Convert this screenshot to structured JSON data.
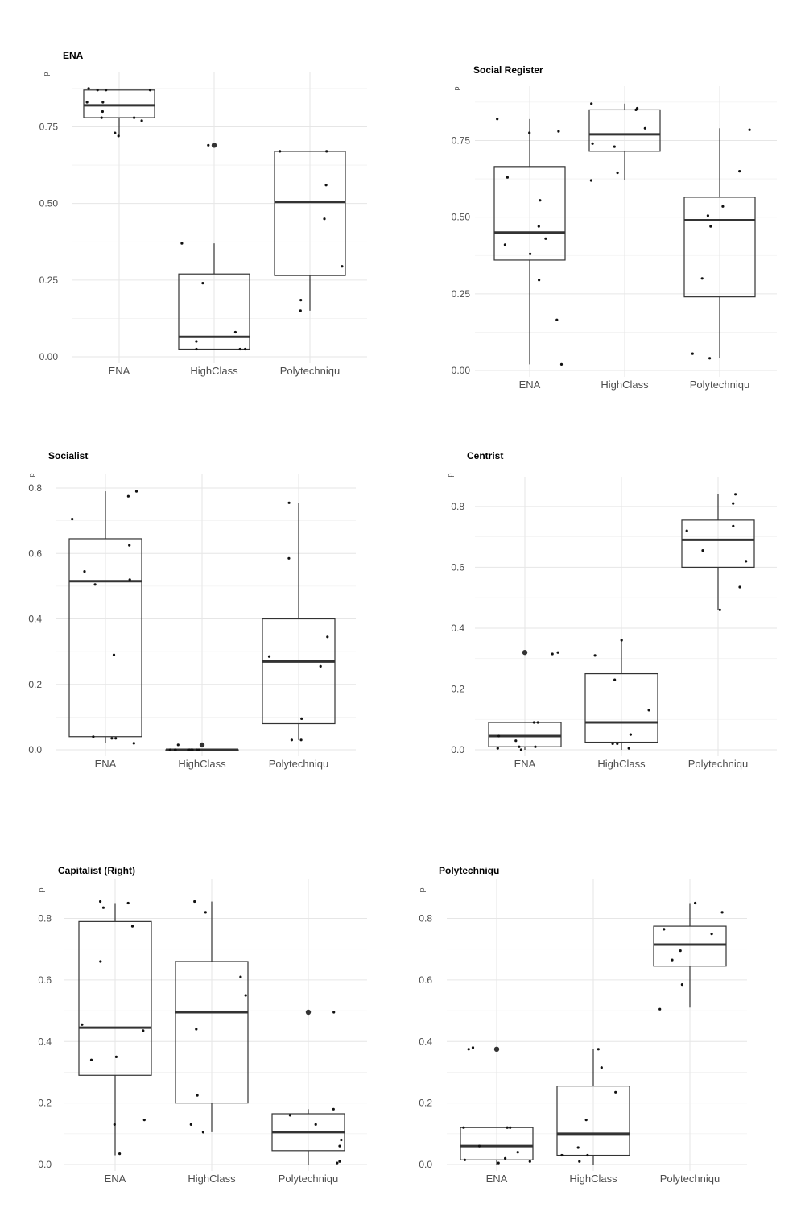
{
  "chart_data": [
    {
      "type": "boxplot",
      "title": "ENA",
      "ylabel": "p",
      "categories": [
        "ENA",
        "HighClass",
        "Polytechniqu"
      ],
      "ylim": [
        0,
        0.88
      ],
      "yticks": [
        0,
        0.25,
        0.5,
        0.75
      ],
      "ytick_labels": [
        "0.00",
        "0.25",
        "0.50",
        "0.75"
      ],
      "boxes": [
        {
          "q1": 0.78,
          "median": 0.82,
          "q3": 0.87,
          "lower": 0.72,
          "upper": 0.87,
          "outliers": []
        },
        {
          "q1": 0.025,
          "median": 0.065,
          "q3": 0.27,
          "lower": 0.025,
          "upper": 0.37,
          "outliers": [
            0.69
          ]
        },
        {
          "q1": 0.265,
          "median": 0.505,
          "q3": 0.67,
          "lower": 0.15,
          "upper": 0.67,
          "outliers": []
        }
      ],
      "points": [
        [
          0.73,
          0.72,
          0.78,
          0.83,
          0.87,
          0.875,
          0.87,
          0.8,
          0.83,
          0.87,
          0.78,
          0.77
        ],
        [
          0.05,
          0.24,
          0.37,
          0.025,
          0.08,
          0.025,
          0.025,
          0.69
        ],
        [
          0.185,
          0.15,
          0.45,
          0.56,
          0.67,
          0.67,
          0.295
        ]
      ]
    },
    {
      "type": "boxplot",
      "title": "Social Register",
      "ylabel": "p",
      "categories": [
        "ENA",
        "HighClass",
        "Polytechniqu"
      ],
      "ylim": [
        0,
        0.88
      ],
      "yticks": [
        0,
        0.25,
        0.5,
        0.75
      ],
      "ytick_labels": [
        "0.00",
        "0.25",
        "0.50",
        "0.75"
      ],
      "boxes": [
        {
          "q1": 0.36,
          "median": 0.45,
          "q3": 0.665,
          "lower": 0.02,
          "upper": 0.82,
          "outliers": []
        },
        {
          "q1": 0.715,
          "median": 0.77,
          "q3": 0.85,
          "lower": 0.62,
          "upper": 0.87,
          "outliers": []
        },
        {
          "q1": 0.24,
          "median": 0.49,
          "q3": 0.565,
          "lower": 0.04,
          "upper": 0.79,
          "outliers": []
        }
      ],
      "points": [
        [
          0.295,
          0.165,
          0.555,
          0.63,
          0.43,
          0.47,
          0.41,
          0.38,
          0.82,
          0.78,
          0.775,
          0.02
        ],
        [
          0.74,
          0.73,
          0.87,
          0.85,
          0.62,
          0.855,
          0.645,
          0.79
        ],
        [
          0.65,
          0.47,
          0.04,
          0.055,
          0.785,
          0.3,
          0.505,
          0.535
        ]
      ]
    },
    {
      "type": "boxplot",
      "title": "Socialist",
      "ylabel": "p",
      "categories": [
        "ENA",
        "HighClass",
        "Polytechniqu"
      ],
      "ylim": [
        0,
        0.8
      ],
      "yticks": [
        0,
        0.2,
        0.4,
        0.6,
        0.8
      ],
      "ytick_labels": [
        "0.0",
        "0.2",
        "0.4",
        "0.6",
        "0.8"
      ],
      "boxes": [
        {
          "q1": 0.04,
          "median": 0.515,
          "q3": 0.645,
          "lower": 0.02,
          "upper": 0.79,
          "outliers": []
        },
        {
          "q1": 0.0,
          "median": 0.0,
          "q3": 0.0,
          "lower": 0.0,
          "upper": 0.0,
          "outliers": [
            0.015
          ]
        },
        {
          "q1": 0.08,
          "median": 0.27,
          "q3": 0.4,
          "lower": 0.03,
          "upper": 0.755,
          "outliers": []
        }
      ],
      "points": [
        [
          0.79,
          0.52,
          0.505,
          0.29,
          0.625,
          0.545,
          0.775,
          0.02,
          0.035,
          0.705,
          0.04,
          0.035
        ],
        [
          0.0,
          0.0,
          0.0,
          0.0,
          0.015,
          0.0,
          0.0,
          0.0,
          0.0,
          0.0
        ],
        [
          0.755,
          0.285,
          0.585,
          0.03,
          0.345,
          0.255,
          0.095,
          0.03
        ]
      ]
    },
    {
      "type": "boxplot",
      "title": "Centrist",
      "ylabel": "p",
      "categories": [
        "ENA",
        "HighClass",
        "Polytechniqu"
      ],
      "ylim": [
        0,
        0.85
      ],
      "yticks": [
        0,
        0.2,
        0.4,
        0.6,
        0.8
      ],
      "ytick_labels": [
        "0.0",
        "0.2",
        "0.4",
        "0.6",
        "0.8"
      ],
      "boxes": [
        {
          "q1": 0.01,
          "median": 0.045,
          "q3": 0.09,
          "lower": 0.0,
          "upper": 0.09,
          "outliers": [
            0.32
          ]
        },
        {
          "q1": 0.025,
          "median": 0.09,
          "q3": 0.25,
          "lower": 0.0,
          "upper": 0.36,
          "outliers": []
        },
        {
          "q1": 0.6,
          "median": 0.69,
          "q3": 0.755,
          "lower": 0.46,
          "upper": 0.84,
          "outliers": []
        }
      ],
      "points": [
        [
          0.01,
          0.005,
          0.09,
          0.0,
          0.01,
          0.09,
          0.045,
          0.315,
          0.32,
          0.03
        ],
        [
          0.23,
          0.02,
          0.13,
          0.05,
          0.36,
          0.02,
          0.31,
          0.005
        ],
        [
          0.62,
          0.46,
          0.735,
          0.81,
          0.84,
          0.72,
          0.535,
          0.655
        ]
      ]
    },
    {
      "type": "boxplot",
      "title": "Capitalist (Right)",
      "ylabel": "p",
      "categories": [
        "ENA",
        "HighClass",
        "Polytechniqu"
      ],
      "ylim": [
        0,
        0.88
      ],
      "yticks": [
        0,
        0.2,
        0.4,
        0.6,
        0.8
      ],
      "ytick_labels": [
        "0.0",
        "0.2",
        "0.4",
        "0.6",
        "0.8"
      ],
      "boxes": [
        {
          "q1": 0.29,
          "median": 0.445,
          "q3": 0.79,
          "lower": 0.03,
          "upper": 0.85,
          "outliers": []
        },
        {
          "q1": 0.2,
          "median": 0.495,
          "q3": 0.66,
          "lower": 0.105,
          "upper": 0.855,
          "outliers": []
        },
        {
          "q1": 0.045,
          "median": 0.105,
          "q3": 0.165,
          "lower": 0.0,
          "upper": 0.18,
          "outliers": [
            0.495
          ]
        }
      ],
      "points": [
        [
          0.85,
          0.855,
          0.35,
          0.66,
          0.13,
          0.455,
          0.775,
          0.035,
          0.835,
          0.435,
          0.34,
          0.145
        ],
        [
          0.82,
          0.55,
          0.44,
          0.855,
          0.61,
          0.225,
          0.105,
          0.13
        ],
        [
          0.01,
          0.16,
          0.18,
          0.06,
          0.13,
          0.005,
          0.08,
          0.495
        ]
      ]
    },
    {
      "type": "boxplot",
      "title": "Polytechniqu",
      "ylabel": "p",
      "categories": [
        "ENA",
        "HighClass",
        "Polytechniqu"
      ],
      "ylim": [
        0,
        0.88
      ],
      "yticks": [
        0,
        0.2,
        0.4,
        0.6,
        0.8
      ],
      "ytick_labels": [
        "0.0",
        "0.2",
        "0.4",
        "0.6",
        "0.8"
      ],
      "boxes": [
        {
          "q1": 0.015,
          "median": 0.06,
          "q3": 0.12,
          "lower": 0.0,
          "upper": 0.12,
          "outliers": [
            0.375
          ]
        },
        {
          "q1": 0.03,
          "median": 0.1,
          "q3": 0.255,
          "lower": 0.0,
          "upper": 0.375,
          "outliers": []
        },
        {
          "q1": 0.645,
          "median": 0.715,
          "q3": 0.775,
          "lower": 0.51,
          "upper": 0.85,
          "outliers": []
        }
      ],
      "points": [
        [
          0.38,
          0.01,
          0.12,
          0.015,
          0.04,
          0.375,
          0.12,
          0.06,
          0.02,
          0.005,
          0.12
        ],
        [
          0.03,
          0.03,
          0.235,
          0.145,
          0.055,
          0.315,
          0.375,
          0.01
        ],
        [
          0.665,
          0.505,
          0.765,
          0.585,
          0.75,
          0.695,
          0.82,
          0.85
        ]
      ]
    }
  ]
}
